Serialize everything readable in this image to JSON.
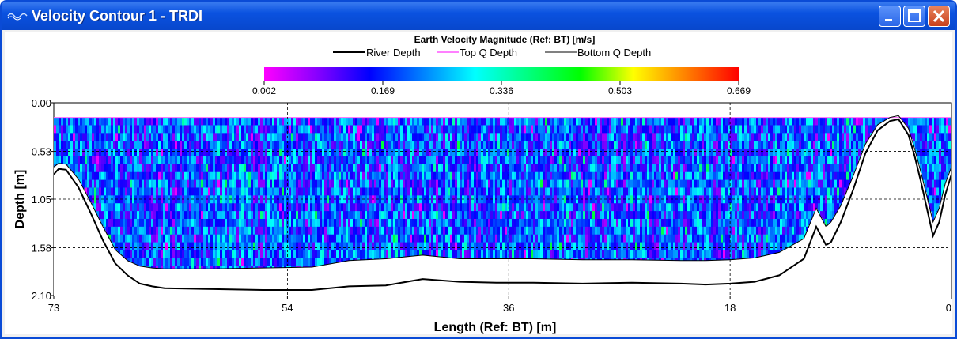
{
  "window": {
    "title": "Velocity Contour 1 - TRDI",
    "icon": "contour-app-icon",
    "controls": [
      "minimize-icon",
      "maximize-icon",
      "close-icon"
    ]
  },
  "chart_data": {
    "type": "heatmap",
    "title": "Earth Velocity Magnitude (Ref: BT) [m/s]",
    "legend": [
      {
        "label": "River Depth",
        "color": "#000000"
      },
      {
        "label": "Top Q Depth",
        "color": "#ff00ff"
      },
      {
        "label": "Bottom Q Depth",
        "color": "#000000"
      }
    ],
    "legend_position": "top-center",
    "colorbar": {
      "min": 0.002,
      "max": 0.669,
      "ticks": [
        "0.002",
        "0.169",
        "0.336",
        "0.503",
        "0.669"
      ],
      "colors": [
        "#ff00ff",
        "#8800ff",
        "#0000ff",
        "#0080ff",
        "#00ffff",
        "#00ff80",
        "#00ff00",
        "#ffff00",
        "#ff8000",
        "#ff0000"
      ]
    },
    "xlabel": "Length (Ref: BT) [m]",
    "ylabel": "Depth [m]",
    "xlim": [
      73,
      0
    ],
    "ylim": [
      0,
      2.1
    ],
    "x_ticks": [
      "73",
      "54",
      "36",
      "18",
      "0"
    ],
    "y_ticks": [
      "0.00",
      "0.53",
      "1.05",
      "1.58",
      "2.10"
    ],
    "grid": true,
    "top_q_depth": 0.16,
    "river_depth": {
      "x": [
        73,
        72.6,
        72,
        71,
        70,
        69,
        68,
        67,
        66,
        65,
        64,
        60,
        56,
        52,
        49,
        46,
        43,
        40,
        37,
        34,
        30,
        26,
        22,
        20,
        18,
        16,
        14,
        12,
        11,
        10.6,
        10.2,
        9.8,
        9,
        8,
        7,
        6,
        5,
        4.3,
        3.5,
        3,
        2.5,
        2,
        1.5,
        1,
        0.5,
        0
      ],
      "y": [
        0.78,
        0.72,
        0.73,
        0.92,
        1.2,
        1.5,
        1.75,
        1.88,
        1.97,
        2.0,
        2.02,
        2.03,
        2.04,
        2.04,
        2.0,
        1.99,
        1.92,
        1.95,
        1.96,
        1.96,
        1.97,
        1.96,
        1.97,
        1.98,
        1.97,
        1.95,
        1.88,
        1.7,
        1.35,
        1.45,
        1.55,
        1.52,
        1.3,
        0.95,
        0.55,
        0.3,
        0.2,
        0.18,
        0.35,
        0.58,
        0.85,
        1.15,
        1.45,
        1.3,
        1.0,
        0.78
      ]
    },
    "bottom_q_depth": {
      "x": [
        73,
        72.6,
        72,
        71,
        70,
        69,
        68,
        67,
        66,
        65,
        64,
        60,
        56,
        52,
        49,
        46,
        43,
        40,
        37,
        34,
        30,
        26,
        22,
        20,
        18,
        16,
        14,
        12,
        11,
        10.6,
        10.2,
        9.8,
        9,
        8,
        7,
        6,
        5,
        4.3,
        3.5,
        3,
        2.5,
        2,
        1.5,
        1,
        0.5,
        0
      ],
      "y": [
        0.7,
        0.66,
        0.67,
        0.83,
        1.08,
        1.35,
        1.6,
        1.72,
        1.78,
        1.8,
        1.81,
        1.81,
        1.8,
        1.79,
        1.72,
        1.7,
        1.66,
        1.7,
        1.7,
        1.7,
        1.71,
        1.71,
        1.72,
        1.72,
        1.71,
        1.69,
        1.63,
        1.48,
        1.15,
        1.25,
        1.35,
        1.3,
        1.12,
        0.8,
        0.45,
        0.24,
        0.16,
        0.14,
        0.28,
        0.5,
        0.75,
        1.02,
        1.3,
        1.15,
        0.88,
        0.7
      ]
    }
  }
}
